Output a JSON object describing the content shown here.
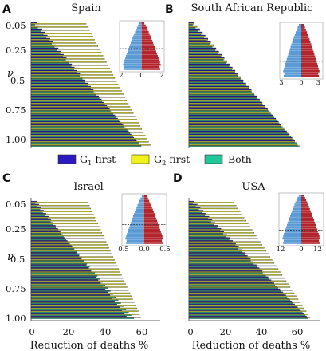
{
  "legend": {
    "g1": {
      "pre": "G",
      "sub": "1",
      "post": " first",
      "color": "#2b1abf"
    },
    "g2": {
      "pre": "G",
      "sub": "2",
      "post": " first",
      "color": "#f2f21a"
    },
    "both": {
      "label": "Both",
      "color": "#1fc79a"
    }
  },
  "inset_colors": {
    "left": "#5b9bd5",
    "right": "#b3242c"
  },
  "chart_data": [
    {
      "panel": "A",
      "title": "Spain",
      "type": "bar",
      "orientation": "horizontal",
      "ylabel": "ν",
      "xlabel": "",
      "y_ticks": [
        "0.05",
        "0.25",
        "0.5",
        "0.75",
        "1.00"
      ],
      "xlim": [
        0,
        70
      ],
      "x_ticks": [],
      "nu": [
        0.05,
        0.075,
        0.1,
        0.125,
        0.15,
        0.175,
        0.2,
        0.225,
        0.25,
        0.275,
        0.3,
        0.325,
        0.35,
        0.375,
        0.4,
        0.425,
        0.45,
        0.475,
        0.5,
        0.525,
        0.55,
        0.575,
        0.6,
        0.625,
        0.65,
        0.675,
        0.7,
        0.725,
        0.75,
        0.775,
        0.8,
        0.825,
        0.85,
        0.875,
        0.9,
        0.925,
        0.95,
        0.975,
        1.0
      ],
      "series": [
        {
          "name": "G1 first",
          "start": 3,
          "end": 59
        },
        {
          "name": "G2 first",
          "start": 30,
          "end": 65
        },
        {
          "name": "Both",
          "start": 2,
          "end": 60
        }
      ],
      "inset": {
        "ticks": [
          "2",
          "0",
          "2"
        ],
        "max": 2,
        "dashed_level": 0.55
      }
    },
    {
      "panel": "B",
      "title": "South African Republic",
      "type": "bar",
      "orientation": "horizontal",
      "ylabel": "",
      "xlabel": "",
      "y_ticks": [],
      "xlim": [
        0,
        70
      ],
      "x_ticks": [],
      "nu": [
        0.05,
        0.075,
        0.1,
        0.125,
        0.15,
        0.175,
        0.2,
        0.225,
        0.25,
        0.275,
        0.3,
        0.325,
        0.35,
        0.375,
        0.4,
        0.425,
        0.45,
        0.475,
        0.5,
        0.525,
        0.55,
        0.575,
        0.6,
        0.625,
        0.65,
        0.675,
        0.7,
        0.725,
        0.75,
        0.775,
        0.8,
        0.825,
        0.85,
        0.875,
        0.9,
        0.925,
        0.95,
        0.975,
        1.0
      ],
      "series": [
        {
          "name": "G1 first",
          "start": 3,
          "end": 60
        },
        {
          "name": "G2 first",
          "start": 3,
          "end": 60
        },
        {
          "name": "Both",
          "start": 2,
          "end": 61
        }
      ],
      "inset": {
        "ticks": [
          "3",
          "0",
          "3"
        ],
        "max": 3,
        "dashed_level": 0.7
      }
    },
    {
      "panel": "C",
      "title": "Israel",
      "type": "bar",
      "orientation": "horizontal",
      "ylabel": "ν",
      "xlabel": "Reduction of deaths %",
      "y_ticks": [
        "0.05",
        "0.25",
        "0.5",
        "0.75",
        "1.00"
      ],
      "xlim": [
        0,
        70
      ],
      "x_ticks": [
        "0",
        "20",
        "40",
        "60"
      ],
      "nu": [
        0.05,
        0.075,
        0.1,
        0.125,
        0.15,
        0.175,
        0.2,
        0.225,
        0.25,
        0.275,
        0.3,
        0.325,
        0.35,
        0.375,
        0.4,
        0.425,
        0.45,
        0.475,
        0.5,
        0.525,
        0.55,
        0.575,
        0.6,
        0.625,
        0.65,
        0.675,
        0.7,
        0.725,
        0.75,
        0.775,
        0.8,
        0.825,
        0.85,
        0.875,
        0.9,
        0.925,
        0.95,
        0.975,
        1.0
      ],
      "series": [
        {
          "name": "G1 first",
          "start": 3,
          "end": 52
        },
        {
          "name": "G2 first",
          "start": 31,
          "end": 60
        },
        {
          "name": "Both",
          "start": 2,
          "end": 56
        }
      ],
      "inset": {
        "ticks": [
          "0.5",
          "0.0",
          "0.5"
        ],
        "max": 0.5,
        "dashed_level": 0.6
      }
    },
    {
      "panel": "D",
      "title": "USA",
      "type": "bar",
      "orientation": "horizontal",
      "ylabel": "",
      "xlabel": "Reduction of deaths %",
      "y_ticks": [],
      "xlim": [
        0,
        70
      ],
      "x_ticks": [
        "0",
        "20",
        "40",
        "60"
      ],
      "nu": [
        0.05,
        0.075,
        0.1,
        0.125,
        0.15,
        0.175,
        0.2,
        0.225,
        0.25,
        0.275,
        0.3,
        0.325,
        0.35,
        0.375,
        0.4,
        0.425,
        0.45,
        0.475,
        0.5,
        0.525,
        0.55,
        0.575,
        0.6,
        0.625,
        0.65,
        0.675,
        0.7,
        0.725,
        0.75,
        0.775,
        0.8,
        0.825,
        0.85,
        0.875,
        0.9,
        0.925,
        0.95,
        0.975,
        1.0
      ],
      "series": [
        {
          "name": "G1 first",
          "start": 3,
          "end": 65
        },
        {
          "name": "G2 first",
          "start": 25,
          "end": 67
        },
        {
          "name": "Both",
          "start": 2,
          "end": 66
        }
      ],
      "inset": {
        "ticks": [
          "12",
          "0",
          "12"
        ],
        "max": 12,
        "dashed_level": 0.72
      }
    }
  ]
}
